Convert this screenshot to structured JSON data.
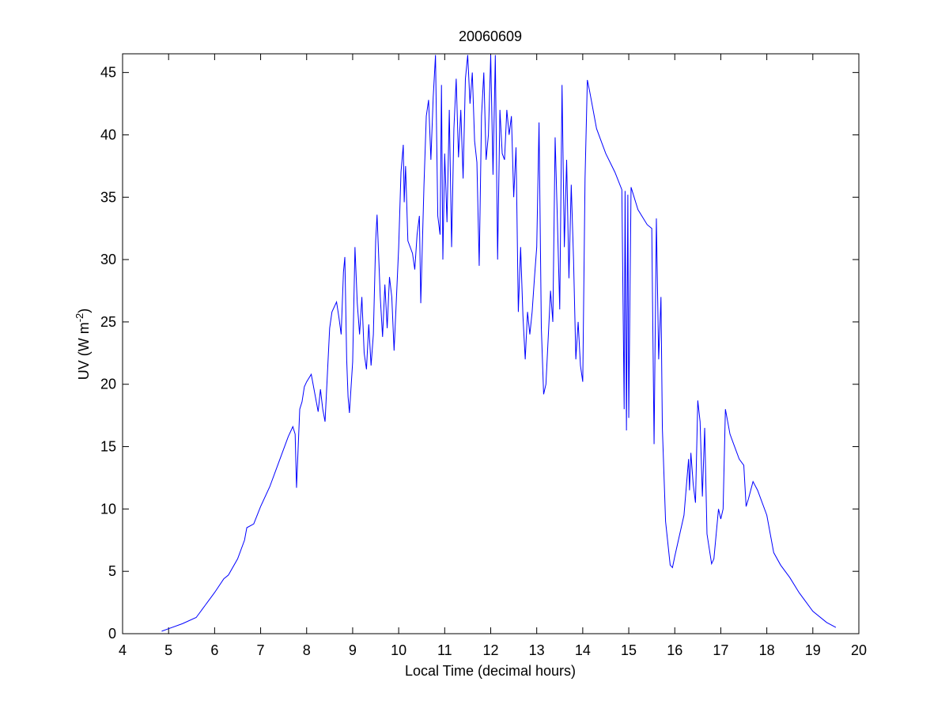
{
  "chart_data": {
    "type": "line",
    "title": "20060609",
    "xlabel": "Local Time (decimal hours)",
    "ylabel": {
      "text": "UV (W m",
      "superscript": "-2",
      "suffix": ")"
    },
    "xlim": [
      4,
      20
    ],
    "ylim": [
      0,
      46.5
    ],
    "xticks": [
      4,
      5,
      6,
      7,
      8,
      9,
      10,
      11,
      12,
      13,
      14,
      15,
      16,
      17,
      18,
      19,
      20
    ],
    "yticks": [
      0,
      5,
      10,
      15,
      20,
      25,
      30,
      35,
      40,
      45
    ],
    "series": [
      {
        "color": "#0000ff",
        "x": [
          4.85,
          5.0,
          5.3,
          5.6,
          5.8,
          6.0,
          6.2,
          6.3,
          6.5,
          6.65,
          6.7,
          6.85,
          7.0,
          7.2,
          7.4,
          7.6,
          7.7,
          7.75,
          7.78,
          7.85,
          7.9,
          7.95,
          8.0,
          8.1,
          8.15,
          8.25,
          8.3,
          8.35,
          8.4,
          8.5,
          8.55,
          8.65,
          8.7,
          8.75,
          8.8,
          8.83,
          8.87,
          8.9,
          8.93,
          9.0,
          9.05,
          9.1,
          9.15,
          9.2,
          9.25,
          9.3,
          9.35,
          9.4,
          9.45,
          9.5,
          9.53,
          9.6,
          9.65,
          9.7,
          9.75,
          9.8,
          9.85,
          9.9,
          9.95,
          10.0,
          10.05,
          10.1,
          10.12,
          10.15,
          10.2,
          10.3,
          10.35,
          10.4,
          10.45,
          10.48,
          10.55,
          10.6,
          10.65,
          10.7,
          10.75,
          10.8,
          10.85,
          10.9,
          10.93,
          10.96,
          11.0,
          11.05,
          11.1,
          11.15,
          11.2,
          11.25,
          11.3,
          11.35,
          11.4,
          11.45,
          11.5,
          11.55,
          11.6,
          11.65,
          11.7,
          11.75,
          11.8,
          11.85,
          11.9,
          11.95,
          12.0,
          12.05,
          12.1,
          12.15,
          12.2,
          12.25,
          12.3,
          12.35,
          12.4,
          12.45,
          12.5,
          12.55,
          12.6,
          12.65,
          12.7,
          12.75,
          12.8,
          12.85,
          12.9,
          12.95,
          13.0,
          13.05,
          13.1,
          13.15,
          13.2,
          13.3,
          13.35,
          13.4,
          13.45,
          13.5,
          13.55,
          13.6,
          13.65,
          13.7,
          13.75,
          13.8,
          13.85,
          13.9,
          13.95,
          14.0,
          14.05,
          14.1,
          14.15,
          14.3,
          14.5,
          14.7,
          14.85,
          14.9,
          14.92,
          14.95,
          14.98,
          15.0,
          15.05,
          15.2,
          15.4,
          15.5,
          15.55,
          15.6,
          15.65,
          15.7,
          15.73,
          15.8,
          15.9,
          15.95,
          16.0,
          16.2,
          16.3,
          16.32,
          16.35,
          16.4,
          16.45,
          16.5,
          16.55,
          16.6,
          16.65,
          16.7,
          16.8,
          16.85,
          16.95,
          17.0,
          17.05,
          17.1,
          17.2,
          17.3,
          17.4,
          17.5,
          17.55,
          17.6,
          17.7,
          17.8,
          18.0,
          18.15,
          18.3,
          18.5,
          18.7,
          19.0,
          19.3,
          19.5
        ],
        "values": [
          0.2,
          0.4,
          0.8,
          1.3,
          2.3,
          3.3,
          4.4,
          4.7,
          6.0,
          7.5,
          8.5,
          8.8,
          10.2,
          11.8,
          13.8,
          15.8,
          16.6,
          16.0,
          11.7,
          18.0,
          18.6,
          19.8,
          20.2,
          20.8,
          19.8,
          17.8,
          19.6,
          18.0,
          17.0,
          24.5,
          25.8,
          26.6,
          25.4,
          24.0,
          29.0,
          30.2,
          22.0,
          19.0,
          17.7,
          21.8,
          31.0,
          26.5,
          24.0,
          27.0,
          22.5,
          21.2,
          24.8,
          21.5,
          24.0,
          31.5,
          33.6,
          27.0,
          23.8,
          28.0,
          24.5,
          28.6,
          27.0,
          22.7,
          26.8,
          31.0,
          37.0,
          39.2,
          34.6,
          37.5,
          31.5,
          30.5,
          29.2,
          32.0,
          33.5,
          26.5,
          36.0,
          41.5,
          42.8,
          38.0,
          43.0,
          46.4,
          33.5,
          32.0,
          44.0,
          30.0,
          38.5,
          33.0,
          42.0,
          31.0,
          40.5,
          44.5,
          38.2,
          42.0,
          36.5,
          44.5,
          46.4,
          42.5,
          45.0,
          39.5,
          37.8,
          29.5,
          41.5,
          45.0,
          38.0,
          40.0,
          46.4,
          36.8,
          46.4,
          30.0,
          42.0,
          38.5,
          38.0,
          42.0,
          40.0,
          41.5,
          35.0,
          39.0,
          25.8,
          31.0,
          25.5,
          22.0,
          25.8,
          24.0,
          25.8,
          28.5,
          31.0,
          41.0,
          24.5,
          19.2,
          20.0,
          27.5,
          25.0,
          39.8,
          33.0,
          26.0,
          44.0,
          31.0,
          38.0,
          28.5,
          36.0,
          30.0,
          22.0,
          25.0,
          21.5,
          20.2,
          36.5,
          44.4,
          43.5,
          40.5,
          38.5,
          37.0,
          35.6,
          18.0,
          35.5,
          16.3,
          35.2,
          17.3,
          35.8,
          34.0,
          32.8,
          32.5,
          15.2,
          33.3,
          22.0,
          27.0,
          16.5,
          9.0,
          5.5,
          5.3,
          6.2,
          9.5,
          14.0,
          11.5,
          14.5,
          12.0,
          10.5,
          18.7,
          17.0,
          11.0,
          16.5,
          8.0,
          5.6,
          6.0,
          10.0,
          9.2,
          10.0,
          18.0,
          16.0,
          15.0,
          14.0,
          13.5,
          10.2,
          10.8,
          12.2,
          11.5,
          9.5,
          6.5,
          5.5,
          4.5,
          3.3,
          1.8,
          0.9,
          0.5
        ]
      }
    ]
  }
}
